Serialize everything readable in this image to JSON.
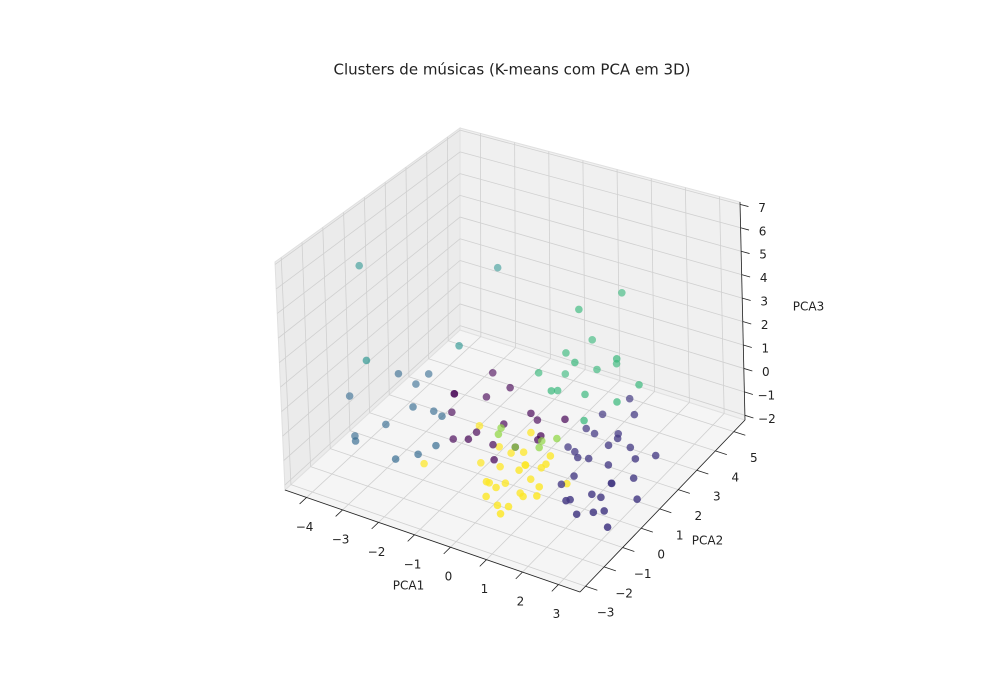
{
  "chart_data": {
    "type": "scatter3d",
    "title": "Clusters de músicas (K-means com PCA em 3D)",
    "xlabel": "PCA1",
    "ylabel": "PCA2",
    "zlabel": "PCA3",
    "xlim": [
      -4.6,
      3.6
    ],
    "ylim": [
      -3.3,
      5.6
    ],
    "zlim": [
      -2.2,
      7.1
    ],
    "xticks": [
      {
        "value": -4,
        "label": "−4"
      },
      {
        "value": -3,
        "label": "−3"
      },
      {
        "value": -2,
        "label": "−2"
      },
      {
        "value": -1,
        "label": "−1"
      },
      0,
      1,
      2,
      3
    ],
    "yticks": [
      {
        "value": -3,
        "label": "−3"
      },
      {
        "value": -2,
        "label": "−2"
      },
      {
        "value": -1,
        "label": "−1"
      },
      0,
      1,
      2,
      3,
      4,
      5
    ],
    "zticks": [
      {
        "value": -2,
        "label": "−2"
      },
      {
        "value": -1,
        "label": "−1"
      },
      0,
      1,
      2,
      3,
      4,
      5,
      6,
      7
    ],
    "grid": true,
    "series": [
      {
        "color": "#fde725",
        "x": [
          0.2,
          0.5,
          0.8,
          1.1,
          0.6,
          0.9,
          1.4,
          0.3,
          -0.2,
          0.7,
          1.0,
          1.3,
          0.4,
          0.8,
          1.6,
          -0.8,
          0.1,
          0.5,
          1.2,
          0.9,
          -0.4,
          0.6,
          1.8,
          0.3,
          1.0,
          0.7,
          -1.5,
          1.5
        ],
        "y": [
          -1.0,
          -1.3,
          -0.8,
          -1.5,
          -0.5,
          -1.9,
          -1.2,
          -0.6,
          -0.3,
          -2.1,
          -0.9,
          -0.4,
          -1.6,
          -1.1,
          -1.7,
          -0.2,
          -1.4,
          -2.3,
          -0.7,
          -1.3,
          -0.9,
          -0.1,
          -0.5,
          -1.9,
          -2.5,
          -0.6,
          -1.8,
          -1.0
        ],
        "z": [
          -0.6,
          -0.9,
          -0.4,
          -1.0,
          -0.2,
          -1.2,
          -0.7,
          -0.3,
          -0.5,
          -1.1,
          -0.8,
          -0.1,
          -0.9,
          -1.3,
          -0.6,
          0.0,
          -1.0,
          -0.7,
          -0.4,
          -0.2,
          -0.8,
          0.3,
          -0.9,
          -0.5,
          -1.0,
          -0.6,
          -0.7,
          0.1
        ]
      },
      {
        "color": "#443983",
        "x": [
          2.0,
          2.5,
          1.8,
          3.0,
          2.2,
          1.5,
          2.8,
          3.3,
          2.4,
          1.9,
          2.7,
          3.1,
          1.6,
          2.1,
          2.9,
          2.3,
          1.7,
          3.4,
          2.6,
          2.0,
          1.4,
          2.5,
          3.2,
          2.8,
          1.8,
          2.2,
          3.0,
          2.4,
          1.2,
          2.7
        ],
        "y": [
          0.3,
          -0.5,
          1.0,
          -0.8,
          1.5,
          0.5,
          0.0,
          -1.2,
          2.0,
          -0.3,
          1.2,
          0.6,
          1.8,
          -0.9,
          -0.2,
          0.8,
          -0.6,
          0.2,
          -1.5,
          2.5,
          1.3,
          0.4,
          1.6,
          -1.0,
          0.1,
          -1.3,
          0.9,
          1.1,
          0.7,
          -0.4
        ],
        "z": [
          -0.4,
          -1.0,
          0.0,
          -1.2,
          -0.2,
          -0.5,
          -0.8,
          -1.4,
          0.3,
          -0.7,
          -0.3,
          -0.9,
          0.1,
          -1.1,
          -0.6,
          -0.1,
          -0.9,
          -1.3,
          -1.0,
          0.4,
          -0.2,
          -0.5,
          -0.7,
          -1.2,
          -0.3,
          -0.8,
          -0.4,
          0.0,
          -0.6,
          -1.1
        ]
      },
      {
        "color": "#440154",
        "x": [
          -1.0,
          -0.5,
          -1.5,
          0.0,
          -0.8,
          -1.8,
          0.4,
          -0.3,
          -1.2,
          0.8,
          -0.6,
          -2.0,
          0.2,
          -1.4,
          -0.1,
          0.6,
          -0.9,
          -1.6
        ],
        "y": [
          0.0,
          0.5,
          -0.3,
          1.0,
          1.4,
          0.2,
          0.6,
          -0.4,
          0.9,
          1.3,
          0.1,
          0.7,
          -0.2,
          1.6,
          1.5,
          0.4,
          -0.6,
          0.0
        ],
        "z": [
          -0.5,
          -0.3,
          -0.8,
          0.0,
          0.4,
          -0.2,
          -0.6,
          -1.0,
          0.2,
          -0.1,
          -0.9,
          0.1,
          -0.4,
          0.6,
          -0.7,
          -0.2,
          -0.3,
          0.8
        ]
      },
      {
        "color": "#31688e",
        "x": [
          -3.0,
          -2.5,
          -3.6,
          -2.0,
          -2.8,
          -3.3,
          -1.8,
          -2.3,
          -4.0,
          -2.6,
          -1.6,
          -3.0,
          -2.2
        ],
        "y": [
          -1.0,
          -0.5,
          -1.5,
          -1.2,
          0.2,
          -2.0,
          -0.3,
          -1.8,
          -1.0,
          0.5,
          -1.0,
          -0.3,
          0.0
        ],
        "z": [
          -0.4,
          0.2,
          -0.8,
          -1.0,
          0.5,
          -0.5,
          0.0,
          -0.9,
          0.3,
          0.8,
          -0.6,
          1.2,
          -0.2
        ]
      },
      {
        "color": "#21918c",
        "x": [
          -4.2,
          -2.0,
          -2.0,
          -3.2
        ],
        "y": [
          0.0,
          3.0,
          1.0,
          -1.5
        ],
        "z": [
          5.0,
          3.8,
          1.9,
          2.5
        ]
      },
      {
        "color": "#35b779",
        "x": [
          0.5,
          1.0,
          0.2,
          1.4,
          0.8,
          -0.2,
          1.8,
          0.6,
          1.2,
          0.0,
          1.6,
          0.9,
          1.0,
          0.6,
          2.0,
          0.4
        ],
        "y": [
          1.5,
          2.0,
          2.5,
          1.2,
          3.0,
          1.8,
          2.2,
          1.0,
          3.3,
          2.8,
          2.6,
          1.7,
          4.0,
          2.5,
          3.0,
          3.5
        ],
        "z": [
          0.8,
          0.5,
          1.5,
          0.2,
          0.7,
          1.0,
          0.4,
          1.2,
          0.9,
          0.3,
          1.8,
          2.0,
          3.3,
          3.5,
          0.6,
          1.4
        ]
      },
      {
        "color": "#90d743",
        "x": [
          0.2,
          0.6,
          -0.3,
          1.0,
          0.4,
          -0.1
        ],
        "y": [
          -0.2,
          0.3,
          0.0,
          0.5,
          0.8,
          -0.5
        ],
        "z": [
          -0.4,
          -0.6,
          0.0,
          -0.2,
          -0.8,
          0.2
        ]
      }
    ]
  }
}
